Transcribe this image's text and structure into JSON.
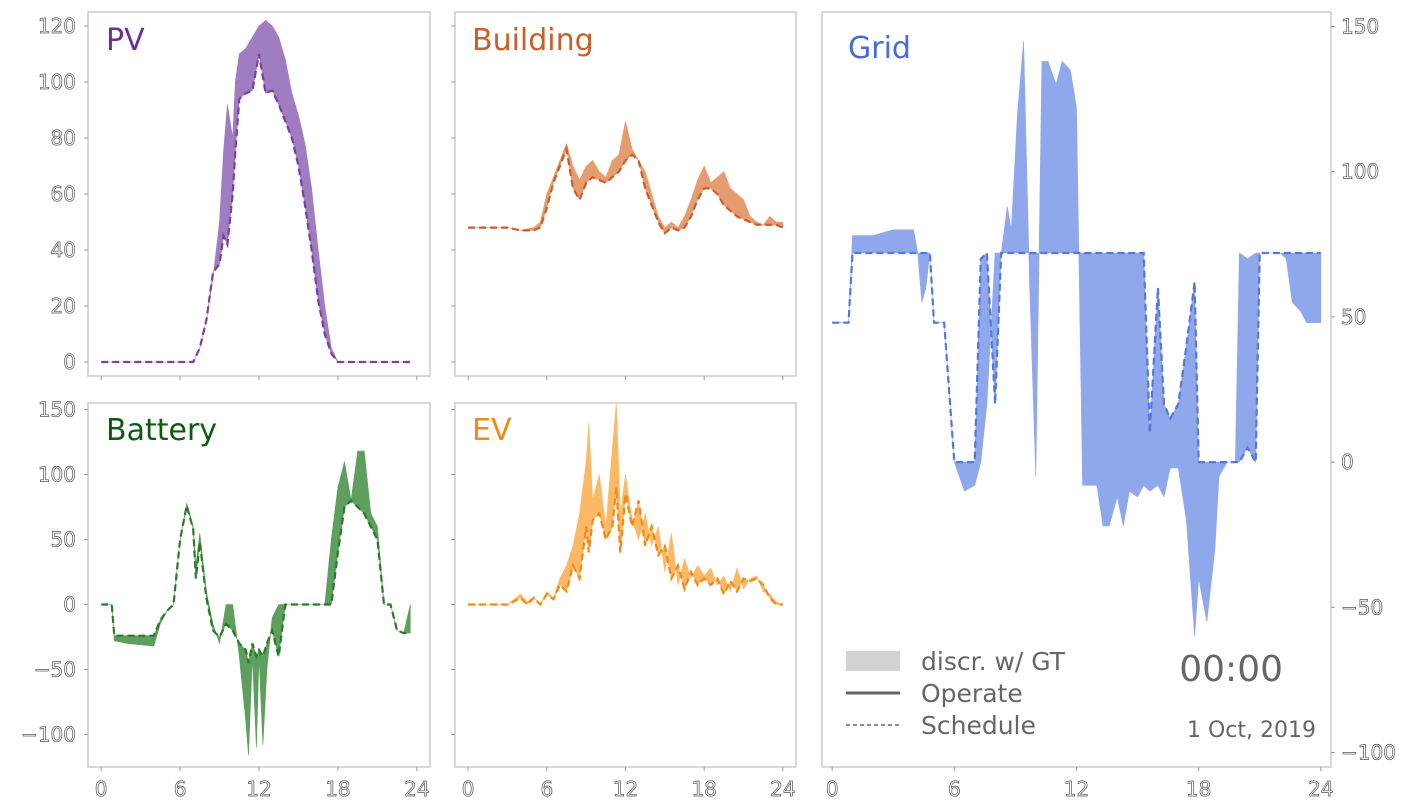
{
  "chart_data": [
    {
      "type": "area",
      "id": "pv",
      "title": "PV",
      "color": "#7b3f9e",
      "fill": "#a07cc0",
      "x_ticks": [
        0,
        6,
        12,
        18,
        24
      ],
      "y_ticks": [
        0,
        20,
        40,
        60,
        80,
        100,
        120
      ],
      "xlim": [
        -1,
        25
      ],
      "ylim": [
        -5,
        125
      ],
      "series": [
        {
          "role": "operate",
          "x": [
            0,
            7,
            7.5,
            8,
            8.5,
            9,
            9.3,
            9.6,
            10,
            10.2,
            10.5,
            11,
            11.5,
            12,
            12.5,
            13,
            13.5,
            14,
            14.5,
            15,
            15.5,
            16,
            16.5,
            17,
            17.5,
            18,
            19,
            20,
            21,
            22,
            23,
            23.5
          ],
          "values": [
            0,
            0,
            5,
            15,
            30,
            50,
            75,
            92,
            80,
            100,
            110,
            112,
            116,
            120,
            122,
            120,
            116,
            108,
            96,
            88,
            78,
            62,
            40,
            20,
            5,
            0,
            0,
            0,
            0,
            0,
            0,
            0
          ]
        },
        {
          "role": "schedule",
          "x": [
            0,
            7,
            7.5,
            8,
            8.5,
            9,
            9.3,
            9.6,
            10,
            10.2,
            10.5,
            11,
            11.5,
            12,
            12.5,
            13,
            13.5,
            14,
            14.5,
            15,
            15.5,
            16,
            16.5,
            17,
            17.5,
            18,
            19,
            20,
            21,
            22,
            23,
            23.5
          ],
          "values": [
            0,
            0,
            5,
            15,
            32,
            35,
            45,
            42,
            60,
            75,
            94,
            96,
            97,
            110,
            96,
            97,
            92,
            86,
            80,
            70,
            56,
            40,
            22,
            10,
            3,
            0,
            0,
            0,
            0,
            0,
            0,
            0
          ]
        }
      ]
    },
    {
      "type": "area",
      "id": "building",
      "title": "Building",
      "color": "#c85f2a",
      "fill": "#e59d70",
      "x_ticks": [
        0,
        6,
        12,
        18,
        24
      ],
      "y_ticks": [
        0,
        20,
        40,
        60,
        80,
        100,
        120
      ],
      "xlim": [
        -1,
        25
      ],
      "ylim": [
        -5,
        125
      ],
      "series": [
        {
          "role": "operate",
          "x": [
            0,
            3,
            4,
            5,
            5.5,
            6,
            6.5,
            7,
            7.5,
            8,
            8.5,
            9,
            9.5,
            10,
            10.5,
            11,
            11.5,
            12,
            12.5,
            13,
            13.5,
            14,
            14.5,
            15,
            15.5,
            16,
            16.5,
            17,
            17.5,
            18,
            18.5,
            19,
            19.5,
            20,
            20.5,
            21,
            21.5,
            22,
            22.5,
            23,
            23.5,
            24
          ],
          "values": [
            48,
            48,
            47,
            48,
            50,
            60,
            66,
            72,
            78,
            70,
            65,
            70,
            72,
            68,
            66,
            72,
            74,
            86,
            76,
            72,
            68,
            60,
            52,
            48,
            50,
            48,
            52,
            58,
            65,
            70,
            64,
            66,
            68,
            62,
            60,
            58,
            52,
            50,
            49,
            52,
            50,
            50
          ]
        },
        {
          "role": "schedule",
          "x": [
            0,
            3,
            4,
            5,
            5.5,
            6,
            6.5,
            7,
            7.5,
            8,
            8.5,
            9,
            9.5,
            10,
            10.5,
            11,
            11.5,
            12,
            12.5,
            13,
            13.5,
            14,
            14.5,
            15,
            15.5,
            16,
            16.5,
            17,
            17.5,
            18,
            18.5,
            19,
            19.5,
            20,
            20.5,
            21,
            21.5,
            22,
            22.5,
            23,
            23.5,
            24
          ],
          "values": [
            48,
            48,
            47,
            47,
            48,
            55,
            64,
            70,
            76,
            62,
            58,
            64,
            66,
            65,
            64,
            66,
            68,
            72,
            74,
            72,
            62,
            56,
            50,
            46,
            48,
            47,
            48,
            52,
            58,
            62,
            62,
            60,
            56,
            54,
            52,
            51,
            50,
            49,
            49,
            49,
            49,
            48
          ]
        }
      ]
    },
    {
      "type": "area",
      "id": "battery",
      "title": "Battery",
      "color": "#2a7a2a",
      "fill": "#5e9e5e",
      "x_ticks": [
        0,
        6,
        12,
        18,
        24
      ],
      "y_ticks": [
        -100,
        -50,
        0,
        50,
        100,
        150
      ],
      "xlim": [
        -1,
        25
      ],
      "ylim": [
        -125,
        155
      ],
      "series": [
        {
          "role": "operate",
          "x": [
            0,
            0.8,
            1,
            2,
            3,
            4,
            4.5,
            5,
            5.5,
            6,
            6.5,
            7,
            7.2,
            7.5,
            8,
            8.5,
            9,
            9.5,
            10,
            10.5,
            11,
            11.2,
            11.5,
            11.8,
            12,
            12.3,
            12.6,
            13,
            13.5,
            14,
            14.5,
            15,
            15.5,
            16,
            16.5,
            17,
            17.5,
            18,
            18.5,
            19,
            19.5,
            20,
            20.5,
            21,
            21.5,
            22,
            22.5,
            23,
            23.5
          ],
          "values": [
            0,
            0,
            -28,
            -30,
            -31,
            -32,
            -15,
            -5,
            0,
            50,
            78,
            60,
            30,
            55,
            10,
            -15,
            -30,
            0,
            0,
            -40,
            -90,
            -116,
            -40,
            -110,
            -40,
            -108,
            -50,
            -10,
            0,
            0,
            0,
            0,
            0,
            0,
            0,
            0,
            50,
            90,
            110,
            80,
            118,
            118,
            70,
            60,
            0,
            0,
            -20,
            -22,
            0
          ]
        },
        {
          "role": "schedule",
          "x": [
            0,
            0.8,
            1,
            2,
            3,
            4,
            4.5,
            5,
            5.5,
            6,
            6.5,
            7,
            7.2,
            7.5,
            8,
            8.5,
            9,
            9.5,
            10,
            10.5,
            11,
            11.2,
            11.5,
            11.8,
            12,
            12.3,
            12.6,
            13,
            13.5,
            14,
            14.5,
            15,
            15.5,
            16,
            16.5,
            17,
            17.5,
            18,
            18.5,
            19,
            19.5,
            20,
            20.5,
            21,
            21.5,
            22,
            22.5,
            23,
            23.5
          ],
          "values": [
            0,
            0,
            -24,
            -24,
            -24,
            -24,
            -12,
            -5,
            0,
            50,
            76,
            58,
            20,
            48,
            5,
            -20,
            -25,
            -15,
            -20,
            -30,
            -35,
            -45,
            -30,
            -40,
            -35,
            -40,
            -30,
            -20,
            -40,
            0,
            0,
            0,
            0,
            0,
            0,
            0,
            0,
            40,
            75,
            80,
            75,
            70,
            60,
            50,
            0,
            0,
            -20,
            -22,
            -22
          ]
        }
      ]
    },
    {
      "type": "area",
      "id": "ev",
      "title": "EV",
      "color": "#f08a17",
      "fill": "#fdb866",
      "x_ticks": [
        0,
        6,
        12,
        18,
        24
      ],
      "y_ticks": [
        -100,
        -50,
        0,
        50,
        100,
        150
      ],
      "xlim": [
        -1,
        25
      ],
      "ylim": [
        -125,
        155
      ],
      "series": [
        {
          "role": "operate",
          "x": [
            0,
            3,
            4,
            4.5,
            5,
            5.5,
            6,
            6.5,
            7,
            7.5,
            8,
            8.5,
            9,
            9.2,
            9.5,
            10,
            10.5,
            11,
            11.3,
            11.6,
            12,
            12.5,
            13,
            13.5,
            14,
            14.5,
            15,
            15.5,
            16,
            16.5,
            17,
            17.5,
            18,
            18.5,
            19,
            19.5,
            20,
            20.5,
            21,
            21.5,
            22,
            22.5,
            23,
            23.5,
            24
          ],
          "values": [
            0,
            0,
            8,
            2,
            6,
            0,
            10,
            5,
            20,
            30,
            45,
            70,
            110,
            140,
            80,
            100,
            60,
            120,
            155,
            70,
            100,
            65,
            50,
            70,
            45,
            60,
            25,
            55,
            15,
            35,
            20,
            30,
            22,
            28,
            15,
            22,
            10,
            28,
            12,
            20,
            22,
            10,
            8,
            2,
            0
          ]
        },
        {
          "role": "schedule",
          "x": [
            0,
            3,
            4,
            4.5,
            5,
            5.5,
            6,
            6.5,
            7,
            7.5,
            8,
            8.5,
            9,
            9.2,
            9.5,
            10,
            10.5,
            11,
            11.3,
            11.6,
            12,
            12.5,
            13,
            13.5,
            14,
            14.5,
            15,
            15.5,
            16,
            16.5,
            17,
            17.5,
            18,
            18.5,
            19,
            19.5,
            20,
            20.5,
            21,
            21.5,
            22,
            22.5,
            23,
            23.5,
            24
          ],
          "values": [
            0,
            0,
            5,
            0,
            5,
            0,
            8,
            4,
            15,
            10,
            30,
            20,
            60,
            40,
            65,
            70,
            50,
            60,
            90,
            40,
            85,
            60,
            80,
            45,
            60,
            38,
            45,
            20,
            30,
            12,
            25,
            15,
            20,
            15,
            20,
            8,
            18,
            10,
            20,
            18,
            20,
            15,
            5,
            0,
            0
          ]
        }
      ]
    },
    {
      "type": "area",
      "id": "grid",
      "title": "Grid",
      "color": "#5578d8",
      "fill": "#8fa8ec",
      "x_ticks": [
        0,
        6,
        12,
        18,
        24
      ],
      "y_ticks": [
        -100,
        -50,
        0,
        50,
        100,
        150
      ],
      "xlim": [
        -0.5,
        24.5
      ],
      "ylim": [
        -105,
        155
      ],
      "series": [
        {
          "role": "operate",
          "x": [
            0,
            0.8,
            1,
            2,
            3,
            4,
            4.2,
            4.4,
            4.6,
            4.8,
            5,
            5.5,
            6,
            6.5,
            7,
            7.3,
            7.6,
            8,
            8.3,
            8.6,
            8.8,
            9.1,
            9.4,
            9.7,
            10,
            10.3,
            10.6,
            11,
            11.3,
            11.7,
            12,
            12.3,
            12.6,
            13,
            13.3,
            13.6,
            14,
            14.3,
            14.6,
            15,
            15.3,
            15.6,
            16,
            16.3,
            16.6,
            17,
            17.4,
            17.8,
            18,
            18.4,
            18.8,
            19,
            19.4,
            19.8,
            20,
            20.4,
            20.8,
            21,
            21.5,
            22,
            22.3,
            22.6,
            23,
            23.3,
            23.6,
            24
          ],
          "values": [
            48,
            48,
            78,
            78,
            80,
            80,
            72,
            55,
            60,
            72,
            48,
            48,
            0,
            -10,
            -8,
            0,
            20,
            72,
            72,
            88,
            80,
            120,
            145,
            60,
            -5,
            138,
            138,
            130,
            138,
            135,
            122,
            -8,
            -8,
            -8,
            -22,
            -22,
            -12,
            -22,
            -10,
            -12,
            -8,
            -10,
            -8,
            -12,
            -2,
            -2,
            -20,
            -60,
            -40,
            -55,
            -30,
            -5,
            0,
            0,
            72,
            70,
            72,
            72,
            72,
            72,
            70,
            55,
            52,
            48,
            48,
            48
          ]
        },
        {
          "role": "schedule",
          "x": [
            0,
            0.8,
            1,
            2,
            3,
            4,
            4.2,
            4.4,
            4.6,
            4.8,
            5,
            5.5,
            6,
            6.5,
            7,
            7.3,
            7.6,
            8,
            8.3,
            8.6,
            8.8,
            9.1,
            9.4,
            9.7,
            10,
            10.3,
            10.6,
            11,
            11.3,
            11.7,
            12,
            12.3,
            12.6,
            13,
            13.3,
            13.6,
            14,
            14.3,
            14.6,
            15,
            15.3,
            15.6,
            16,
            16.3,
            16.6,
            17,
            17.4,
            17.8,
            18,
            18.4,
            18.8,
            19,
            19.4,
            19.8,
            20,
            20.4,
            20.8,
            21,
            21.5,
            22,
            22.3,
            22.6,
            23,
            23.3,
            23.6,
            24
          ],
          "values": [
            48,
            48,
            72,
            72,
            72,
            72,
            72,
            72,
            72,
            72,
            48,
            48,
            0,
            0,
            0,
            70,
            72,
            20,
            72,
            72,
            72,
            72,
            72,
            72,
            72,
            72,
            72,
            72,
            72,
            72,
            72,
            72,
            72,
            72,
            72,
            72,
            72,
            72,
            72,
            72,
            72,
            10,
            60,
            20,
            15,
            20,
            40,
            62,
            0,
            0,
            0,
            0,
            0,
            0,
            0,
            5,
            0,
            72,
            72,
            72,
            72,
            72,
            72,
            72,
            72,
            72
          ]
        }
      ]
    }
  ],
  "legend": {
    "items": [
      {
        "label": "discr. w/ GT",
        "kind": "fill"
      },
      {
        "label": "Operate",
        "kind": "solid"
      },
      {
        "label": "Schedule",
        "kind": "dashed"
      }
    ]
  },
  "clock": "00:00",
  "date": "1 Oct, 2019"
}
